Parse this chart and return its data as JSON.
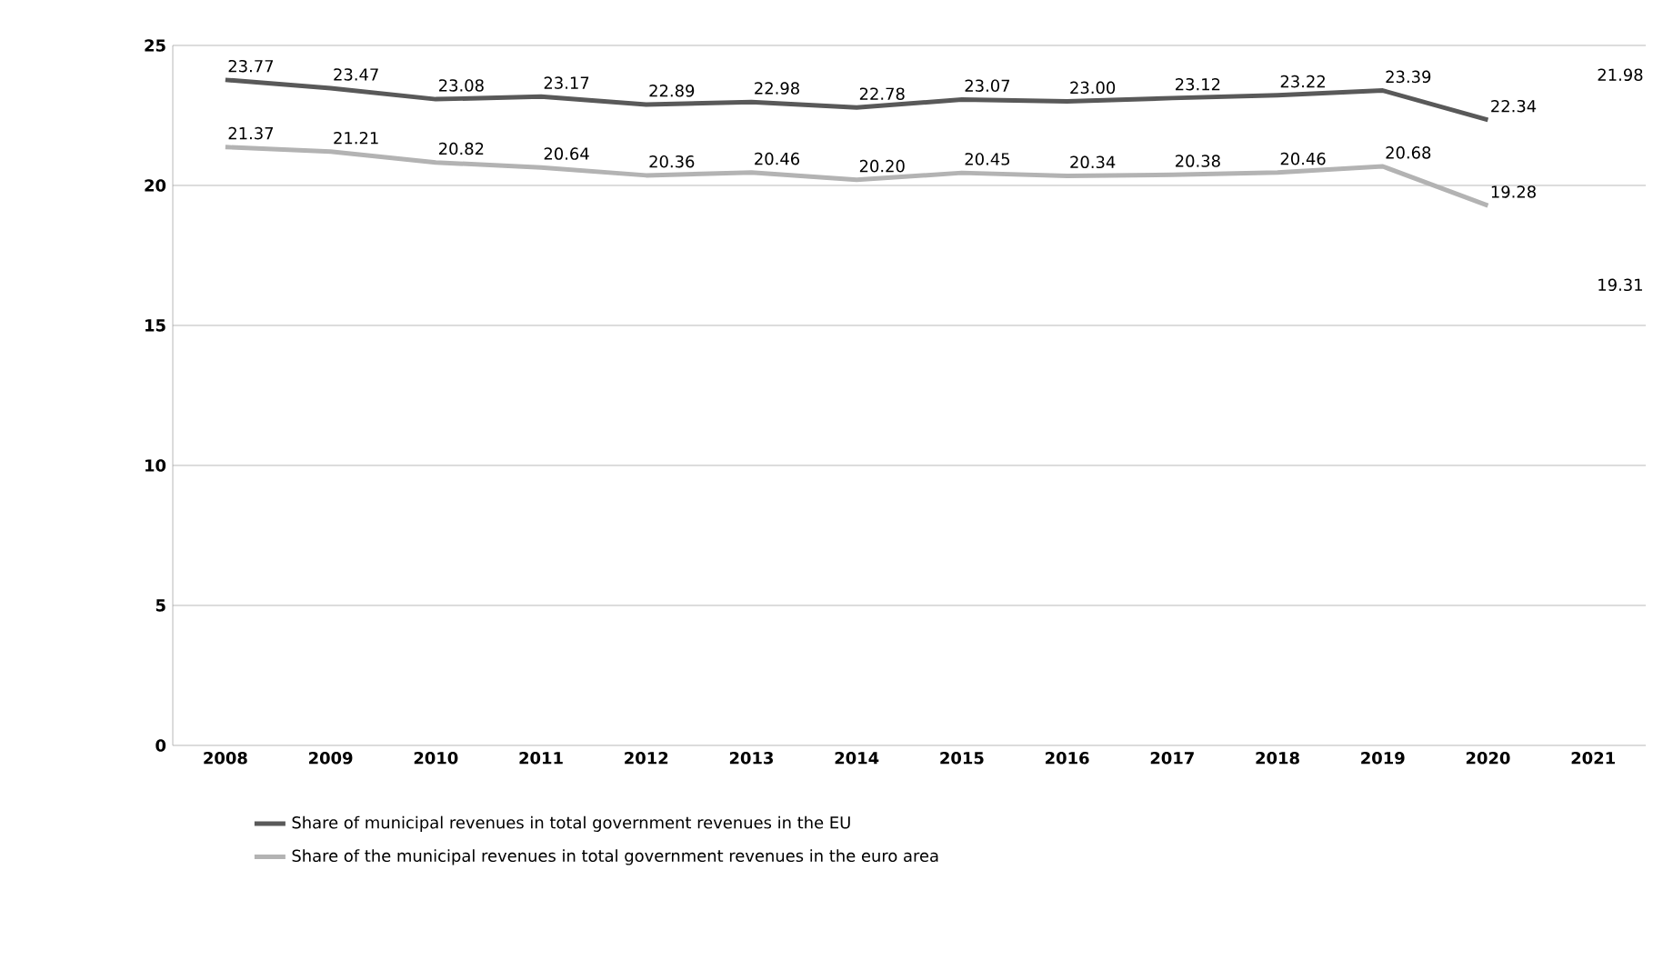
{
  "chart_data": {
    "type": "line",
    "categories": [
      "2008",
      "2009",
      "2010",
      "2011",
      "2012",
      "2013",
      "2014",
      "2015",
      "2016",
      "2017",
      "2018",
      "2019",
      "2020",
      "2021"
    ],
    "series": [
      {
        "name": "Share of municipal revenues in total government revenues in the EU",
        "color": "#595959",
        "values": [
          23.77,
          23.47,
          23.08,
          23.17,
          22.89,
          22.98,
          22.78,
          23.07,
          23.0,
          23.12,
          23.22,
          23.39,
          22.34,
          null
        ],
        "value_labels": [
          "23.77",
          "23.47",
          "23.08",
          "23.17",
          "22.89",
          "22.98",
          "22.78",
          "23.07",
          "23.00",
          "23.12",
          "23.22",
          "23.39",
          "22.34",
          null
        ]
      },
      {
        "name": "Share of the municipal revenues in total government revenues in the euro area",
        "color": "#b3b3b3",
        "values": [
          21.37,
          21.21,
          20.82,
          20.64,
          20.36,
          20.46,
          20.2,
          20.45,
          20.34,
          20.38,
          20.46,
          20.68,
          19.28,
          null
        ],
        "value_labels": [
          "21.37",
          "21.21",
          "20.82",
          "20.64",
          "20.36",
          "20.46",
          "20.20",
          "20.45",
          "20.34",
          "20.38",
          "20.46",
          "20.68",
          "19.28",
          null
        ]
      }
    ],
    "annotations": [
      "21.98",
      "19.31"
    ],
    "ylim": [
      0,
      25
    ],
    "yticks": [
      0,
      5,
      10,
      15,
      20,
      25
    ],
    "grid": "y",
    "legend": "bottom",
    "marker": "none",
    "line_style": "solid"
  }
}
